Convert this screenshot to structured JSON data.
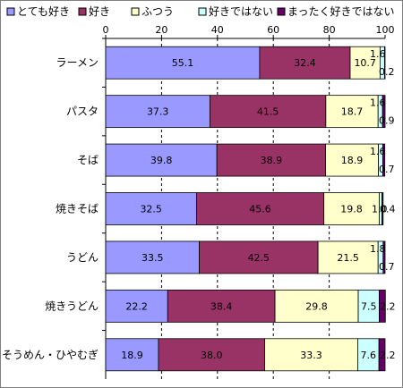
{
  "chart_data": {
    "type": "bar",
    "orientation": "horizontal",
    "stacked": true,
    "categories": [
      "ラーメン",
      "パスタ",
      "そば",
      "焼きそば",
      "うどん",
      "焼きうどん",
      "そうめん・ひやむぎ"
    ],
    "series": [
      {
        "name": "とても好き",
        "color": "#9999ff",
        "values": [
          55.1,
          37.3,
          39.8,
          32.5,
          33.5,
          22.2,
          18.9
        ]
      },
      {
        "name": "好き",
        "color": "#993366",
        "values": [
          32.4,
          41.5,
          38.9,
          45.6,
          42.5,
          38.4,
          38.0
        ]
      },
      {
        "name": "ふつう",
        "color": "#ffffcc",
        "values": [
          10.7,
          18.7,
          18.9,
          19.8,
          21.5,
          29.8,
          33.3
        ]
      },
      {
        "name": "好きではない",
        "color": "#ccffff",
        "values": [
          1.6,
          1.6,
          1.6,
          1.0,
          1.8,
          7.5,
          7.6
        ]
      },
      {
        "name": "まったく好きではない",
        "color": "#660066",
        "values": [
          0.2,
          0.9,
          0.7,
          0.4,
          0.7,
          2.2,
          2.2
        ]
      }
    ],
    "value_labels": [
      [
        "55.1",
        "32.4",
        "10.7",
        "1.6",
        "0.2"
      ],
      [
        "37.3",
        "41.5",
        "18.7",
        "1.6",
        "0.9"
      ],
      [
        "39.8",
        "38.9",
        "18.9",
        "1.6",
        "0.7"
      ],
      [
        "32.5",
        "45.6",
        "19.8",
        "1.0",
        "0.4"
      ],
      [
        "33.5",
        "42.5",
        "21.5",
        "1.8",
        "0.7"
      ],
      [
        "22.2",
        "38.4",
        "29.8",
        "7.5",
        "2.2"
      ],
      [
        "18.9",
        "38.0",
        "33.3",
        "7.6",
        "2.2"
      ]
    ],
    "xlim": [
      0,
      100
    ],
    "xticks": [
      "0",
      "20",
      "40",
      "60",
      "80",
      "100"
    ],
    "grid": "vertical-dashed",
    "legend_position": "top"
  }
}
